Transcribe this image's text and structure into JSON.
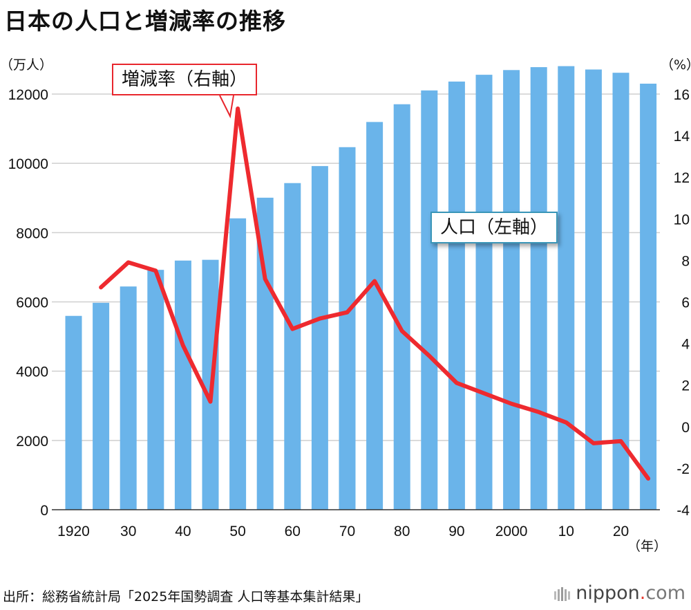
{
  "title": "日本の人口と増減率の推移",
  "source": "出所：総務省統計局「2025年国勢調査 人口等基本集計結果」",
  "logo": {
    "name": "nippon",
    "dot": ".",
    "tld": "com"
  },
  "colors": {
    "bar": "#6ab4ea",
    "line": "#ee2a2f",
    "grid": "#cfcfcf",
    "rate_callout_border": "#e8262d",
    "pop_callout_border": "#3a96b8"
  },
  "chart_data": {
    "type": "bar",
    "title": "日本の人口と増減率の推移",
    "x": [
      1920,
      1925,
      1930,
      1935,
      1940,
      1945,
      1950,
      1955,
      1960,
      1965,
      1970,
      1975,
      1980,
      1985,
      1990,
      1995,
      2000,
      2005,
      2010,
      2015,
      2020,
      2025
    ],
    "x_tick_labels": [
      {
        "x": 1920,
        "label": "1920"
      },
      {
        "x": 1930,
        "label": "30"
      },
      {
        "x": 1940,
        "label": "40"
      },
      {
        "x": 1950,
        "label": "50"
      },
      {
        "x": 1960,
        "label": "60"
      },
      {
        "x": 1970,
        "label": "70"
      },
      {
        "x": 1980,
        "label": "80"
      },
      {
        "x": 1990,
        "label": "90"
      },
      {
        "x": 2000,
        "label": "2000"
      },
      {
        "x": 2010,
        "label": "10"
      },
      {
        "x": 2020,
        "label": "20"
      }
    ],
    "xlabel": "（年）",
    "y_left": {
      "label": "（万人）",
      "range": [
        0,
        12000
      ],
      "ticks": [
        0,
        2000,
        4000,
        6000,
        8000,
        10000,
        12000
      ]
    },
    "y_right": {
      "label": "（%）",
      "range": [
        -4,
        16
      ],
      "ticks": [
        -4,
        -2,
        0,
        2,
        4,
        6,
        8,
        10,
        12,
        14,
        16
      ]
    },
    "grid": true,
    "series": [
      {
        "name": "人口（左軸）",
        "type": "bar",
        "axis": "left",
        "values": [
          5596,
          5974,
          6445,
          6925,
          7193,
          7215,
          8412,
          9008,
          9430,
          9921,
          10467,
          11194,
          11706,
          12105,
          12361,
          12557,
          12693,
          12777,
          12806,
          12709,
          12615,
          12300
        ]
      },
      {
        "name": "増減率（右軸）",
        "type": "line",
        "axis": "right",
        "values": [
          null,
          6.7,
          7.9,
          7.5,
          3.9,
          1.2,
          15.3,
          7.1,
          4.7,
          5.2,
          5.5,
          7.0,
          4.6,
          3.4,
          2.1,
          1.6,
          1.1,
          0.7,
          0.2,
          -0.8,
          -0.7,
          -2.5
        ]
      }
    ]
  }
}
